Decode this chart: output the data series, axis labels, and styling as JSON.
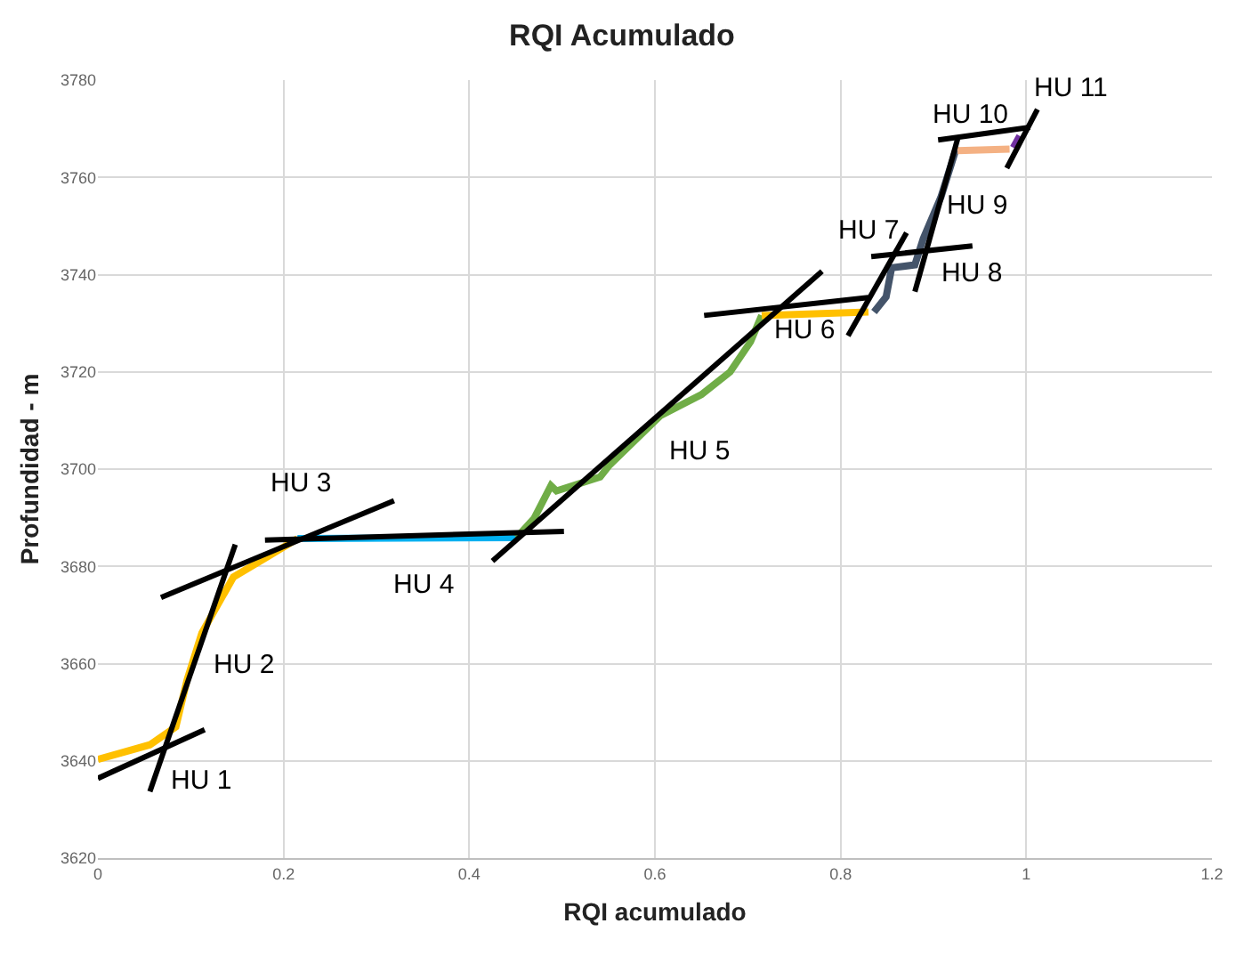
{
  "chart_data": {
    "type": "line",
    "title": "RQI Acumulado",
    "xlabel": "RQI acumulado",
    "ylabel": "Profundidad - m",
    "xlim": [
      0,
      1.2
    ],
    "xticks": [
      0,
      0.2,
      0.4,
      0.6,
      0.8,
      1,
      1.2
    ],
    "ylim": [
      3620,
      3780
    ],
    "yticks": [
      3620,
      3640,
      3660,
      3680,
      3700,
      3720,
      3740,
      3760,
      3780
    ],
    "grid": true,
    "legend": false,
    "marker": "none",
    "line_style": "solid",
    "series": [
      {
        "color": "#ffc000",
        "x": [
          0,
          0.056,
          0.084,
          0.096,
          0.112,
          0.146,
          0.183,
          0.215
        ],
        "values": [
          3640.3,
          3643.3,
          3647,
          3656.6,
          3666.3,
          3677.8,
          3682,
          3685.7
        ]
      },
      {
        "color": "#00b0f0",
        "x": [
          0.215,
          0.451
        ],
        "values": [
          3685.7,
          3685.9
        ]
      },
      {
        "color": "#70ad47",
        "x": [
          0.451,
          0.47,
          0.488,
          0.494,
          0.541,
          0.551,
          0.606,
          0.65,
          0.681,
          0.703,
          0.715
        ],
        "values": [
          3685.9,
          3689.9,
          3696.6,
          3695.5,
          3698.4,
          3700.8,
          3711,
          3715.3,
          3720,
          3726.2,
          3731.6
        ]
      },
      {
        "color": "#ffc000",
        "x": [
          0.715,
          0.83
        ],
        "values": [
          3731.6,
          3732.3
        ]
      },
      {
        "color": "#44546a",
        "x": [
          0.836,
          0.849,
          0.855,
          0.88,
          0.889,
          0.908,
          0.924
        ],
        "values": [
          3732.3,
          3735.4,
          3741.4,
          3742,
          3747.4,
          3755.9,
          3765.6
        ]
      },
      {
        "color": "#f4b183",
        "x": [
          0.926,
          0.982
        ],
        "values": [
          3765.5,
          3765.8
        ]
      },
      {
        "color": "#7030a0",
        "x": [
          0.986,
          0.993
        ],
        "values": [
          3766.1,
          3768.5
        ]
      },
      {
        "name": "HU 1",
        "color": "#000000",
        "x": [
          0,
          0.115
        ],
        "values": [
          3636.4,
          3646.4
        ]
      },
      {
        "name": "HU 2",
        "color": "#000000",
        "x": [
          0.056,
          0.148
        ],
        "values": [
          3633.7,
          3684.5
        ]
      },
      {
        "name": "HU 3",
        "color": "#000000",
        "x": [
          0.068,
          0.319
        ],
        "values": [
          3673.6,
          3693.5
        ]
      },
      {
        "name": "HU 4",
        "color": "#000000",
        "x": [
          0.18,
          0.502
        ],
        "values": [
          3685.4,
          3687.2
        ]
      },
      {
        "name": "HU 5",
        "color": "#000000",
        "x": [
          0.425,
          0.78
        ],
        "values": [
          3681.1,
          3740.7
        ]
      },
      {
        "name": "HU 6",
        "color": "#000000",
        "x": [
          0.653,
          0.83
        ],
        "values": [
          3731.6,
          3735.3
        ]
      },
      {
        "name": "HU 7",
        "color": "#000000",
        "x": [
          0.808,
          0.871
        ],
        "values": [
          3727.4,
          3748.6
        ]
      },
      {
        "name": "HU 8",
        "color": "#000000",
        "x": [
          0.833,
          0.942
        ],
        "values": [
          3743.7,
          3745.9
        ]
      },
      {
        "name": "HU 9",
        "color": "#000000",
        "x": [
          0.88,
          0.926
        ],
        "values": [
          3736.5,
          3767.9
        ]
      },
      {
        "name": "HU 10",
        "color": "#000000",
        "x": [
          0.905,
          1.004
        ],
        "values": [
          3767.7,
          3770.3
        ]
      },
      {
        "name": "HU 11",
        "color": "#000000",
        "x": [
          0.979,
          1.012
        ],
        "values": [
          3761.9,
          3774
        ]
      }
    ]
  }
}
